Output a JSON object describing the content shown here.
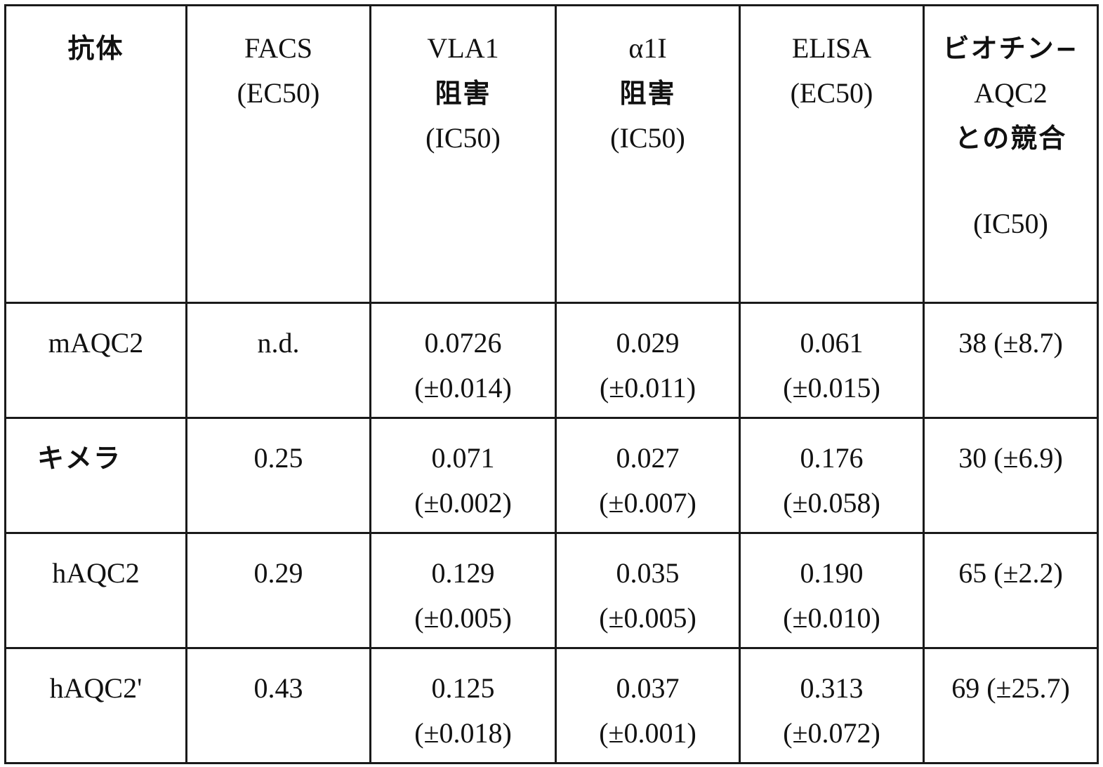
{
  "table": {
    "header": {
      "antibody": "抗体",
      "facs": [
        "FACS",
        "(EC50)"
      ],
      "vla1": [
        "VLA1",
        "阻害",
        "(IC50)"
      ],
      "alpha1i": [
        "α1I",
        "阻害",
        "(IC50)"
      ],
      "elisa": [
        "ELISA",
        "(EC50)"
      ],
      "biotin": [
        "ビオチン−",
        "AQC2",
        "との競合",
        "(IC50)"
      ]
    },
    "rows": [
      {
        "antibody": "mAQC2",
        "facs": "n.d.",
        "vla1": [
          "0.0726",
          "(±0.014)"
        ],
        "alpha1i": [
          "0.029",
          "(±0.011)"
        ],
        "elisa": [
          "0.061",
          "(±0.015)"
        ],
        "biotin": "38 (±8.7)"
      },
      {
        "antibody": "キメラ",
        "facs": "0.25",
        "vla1": [
          "0.071",
          "(±0.002)"
        ],
        "alpha1i": [
          "0.027",
          "(±0.007)"
        ],
        "elisa": [
          "0.176",
          "(±0.058)"
        ],
        "biotin": "30 (±6.9)"
      },
      {
        "antibody": "hAQC2",
        "facs": "0.29",
        "vla1": [
          "0.129",
          "(±0.005)"
        ],
        "alpha1i": [
          "0.035",
          "(±0.005)"
        ],
        "elisa": [
          "0.190",
          "(±0.010)"
        ],
        "biotin": "65 (±2.2)"
      },
      {
        "antibody": "hAQC2'",
        "facs": "0.43",
        "vla1": [
          "0.125",
          "(±0.018)"
        ],
        "alpha1i": [
          "0.037",
          "(±0.001)"
        ],
        "elisa": [
          "0.313",
          "(±0.072)"
        ],
        "biotin": "69 (±25.7)"
      }
    ]
  }
}
